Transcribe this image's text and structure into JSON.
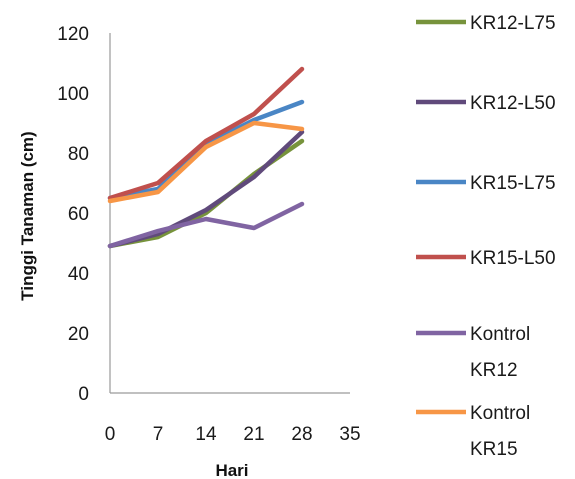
{
  "chart_data": {
    "type": "line",
    "xlabel": "Hari",
    "ylabel": "Tinggi Tanaman  (cm)",
    "xlim": [
      0,
      35
    ],
    "ylim": [
      0,
      120
    ],
    "x_ticks": [
      "0",
      "7",
      "14",
      "21",
      "28",
      "35"
    ],
    "y_ticks": [
      "0",
      "20",
      "40",
      "60",
      "80",
      "100",
      "120"
    ],
    "grid": false,
    "legend_position": "right",
    "x": [
      0,
      7,
      14,
      21,
      28
    ],
    "series": [
      {
        "name": "KR12-L75",
        "label_lines": [
          "KR12-L75"
        ],
        "color": "#77933c",
        "values": [
          49,
          52,
          60,
          73,
          84
        ]
      },
      {
        "name": "KR12-L50",
        "label_lines": [
          "KR12-L50"
        ],
        "color": "#604a7b",
        "values": [
          49,
          53,
          61,
          72,
          87
        ]
      },
      {
        "name": "KR15-L75",
        "label_lines": [
          "KR15-L75"
        ],
        "color": "#4a86c5",
        "values": [
          65,
          68,
          83,
          91,
          97
        ]
      },
      {
        "name": "KR15-L50",
        "label_lines": [
          "KR15-L50"
        ],
        "color": "#c0504d",
        "values": [
          65,
          70,
          84,
          93,
          108
        ]
      },
      {
        "name": "Kontrol KR12",
        "label_lines": [
          "Kontrol",
          "KR12"
        ],
        "color": "#8064a2",
        "values": [
          49,
          54,
          58,
          55,
          63
        ]
      },
      {
        "name": "Kontrol KR15",
        "label_lines": [
          "Kontrol",
          "KR15"
        ],
        "color": "#f79646",
        "values": [
          64,
          67,
          82,
          90,
          88
        ]
      }
    ]
  }
}
